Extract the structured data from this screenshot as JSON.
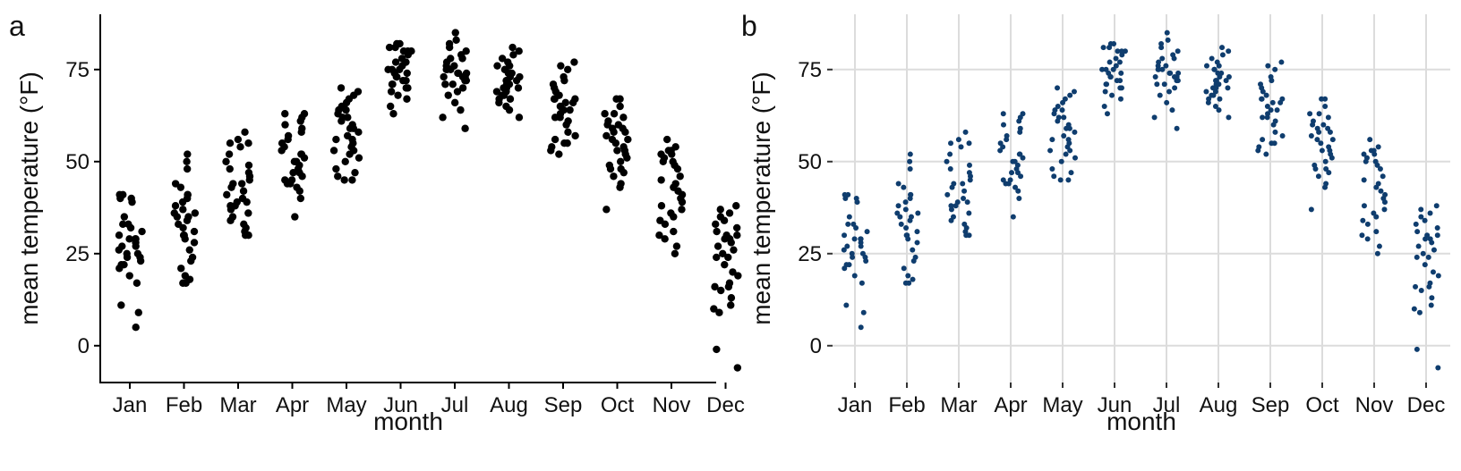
{
  "chart_data": [
    {
      "panel_label": "a",
      "type": "scatter",
      "style": "jittered strip chart, axis lines only, no grid",
      "grid": false,
      "point_color": "#000000",
      "xlabel": "month",
      "ylabel": "mean temperature (°F)",
      "categories": [
        "Jan",
        "Feb",
        "Mar",
        "Apr",
        "May",
        "Jun",
        "Jul",
        "Aug",
        "Sep",
        "Oct",
        "Nov",
        "Dec"
      ],
      "yticks": [
        0,
        25,
        50,
        75
      ],
      "ylim": [
        -10,
        90
      ],
      "values": [
        [
          5,
          9,
          11,
          17,
          19,
          21,
          22,
          23,
          24,
          25,
          25,
          26,
          27,
          28,
          29,
          29,
          30,
          31,
          32,
          33,
          33,
          35,
          39,
          40,
          40,
          41,
          41,
          29,
          24,
          27,
          22
        ],
        [
          17,
          17,
          18,
          19,
          21,
          23,
          24,
          26,
          28,
          29,
          30,
          31,
          32,
          33,
          34,
          35,
          35,
          36,
          37,
          38,
          39,
          40,
          41,
          41,
          43,
          44,
          48,
          50,
          52,
          30,
          36
        ],
        [
          30,
          30,
          31,
          32,
          33,
          34,
          35,
          36,
          37,
          38,
          38,
          39,
          40,
          41,
          42,
          43,
          44,
          45,
          46,
          47,
          48,
          49,
          50,
          52,
          54,
          55,
          55,
          56,
          58,
          39,
          44
        ],
        [
          35,
          40,
          42,
          43,
          44,
          45,
          46,
          47,
          48,
          49,
          50,
          51,
          52,
          53,
          54,
          55,
          56,
          57,
          58,
          59,
          60,
          61,
          62,
          63,
          63,
          47,
          52,
          45,
          50,
          44
        ],
        [
          45,
          45,
          46,
          47,
          48,
          50,
          51,
          52,
          53,
          54,
          55,
          56,
          57,
          58,
          59,
          60,
          61,
          62,
          63,
          64,
          65,
          66,
          67,
          68,
          69,
          70,
          56,
          59,
          62,
          64,
          53
        ],
        [
          63,
          65,
          67,
          68,
          69,
          70,
          71,
          72,
          73,
          74,
          75,
          75,
          76,
          77,
          78,
          79,
          80,
          80,
          81,
          81,
          82,
          82,
          73,
          70,
          75,
          77,
          72,
          71,
          80,
          74
        ],
        [
          59,
          62,
          64,
          66,
          68,
          69,
          70,
          71,
          72,
          72,
          73,
          73,
          74,
          74,
          75,
          75,
          76,
          77,
          78,
          78,
          79,
          80,
          81,
          82,
          83,
          85,
          71,
          76,
          74,
          73,
          75
        ],
        [
          62,
          64,
          65,
          66,
          67,
          68,
          68,
          69,
          70,
          70,
          71,
          71,
          72,
          72,
          73,
          73,
          74,
          75,
          76,
          76,
          77,
          78,
          79,
          80,
          81,
          70,
          74,
          69,
          72,
          67,
          75
        ],
        [
          52,
          53,
          54,
          55,
          56,
          57,
          58,
          60,
          61,
          62,
          63,
          64,
          65,
          66,
          66,
          67,
          67,
          68,
          69,
          70,
          71,
          72,
          73,
          75,
          76,
          77,
          55,
          62,
          64,
          67
        ],
        [
          37,
          43,
          44,
          46,
          47,
          48,
          49,
          50,
          51,
          52,
          53,
          54,
          55,
          56,
          57,
          58,
          58,
          59,
          60,
          61,
          62,
          63,
          63,
          65,
          67,
          67,
          48,
          53,
          56,
          59,
          60
        ],
        [
          25,
          27,
          29,
          30,
          31,
          33,
          34,
          35,
          36,
          37,
          38,
          39,
          40,
          41,
          42,
          43,
          44,
          45,
          46,
          48,
          49,
          50,
          50,
          51,
          52,
          52,
          53,
          53,
          54,
          56
        ],
        [
          -6,
          -1,
          9,
          10,
          11,
          13,
          15,
          16,
          17,
          19,
          20,
          22,
          24,
          25,
          26,
          27,
          28,
          29,
          30,
          31,
          32,
          33,
          34,
          35,
          36,
          37,
          38,
          29,
          24,
          30,
          16
        ]
      ]
    },
    {
      "panel_label": "b",
      "type": "scatter",
      "style": "jittered strip chart, light grey major grid, no axis lines",
      "grid": true,
      "point_color": "#0f3d6e",
      "xlabel": "month",
      "ylabel": "mean temperature (°F)",
      "categories": [
        "Jan",
        "Feb",
        "Mar",
        "Apr",
        "May",
        "Jun",
        "Jul",
        "Aug",
        "Sep",
        "Oct",
        "Nov",
        "Dec"
      ],
      "yticks": [
        0,
        25,
        50,
        75
      ],
      "ylim": [
        -10,
        90
      ],
      "values": [
        [
          5,
          9,
          11,
          17,
          19,
          21,
          22,
          23,
          24,
          25,
          25,
          26,
          27,
          28,
          29,
          29,
          30,
          31,
          32,
          33,
          33,
          35,
          39,
          40,
          40,
          41,
          41,
          29,
          24,
          27,
          22
        ],
        [
          17,
          17,
          18,
          19,
          21,
          23,
          24,
          26,
          28,
          29,
          30,
          31,
          32,
          33,
          34,
          35,
          35,
          36,
          37,
          38,
          39,
          40,
          41,
          41,
          43,
          44,
          48,
          50,
          52,
          30,
          36
        ],
        [
          30,
          30,
          31,
          32,
          33,
          34,
          35,
          36,
          37,
          38,
          38,
          39,
          40,
          41,
          42,
          43,
          44,
          45,
          46,
          47,
          48,
          49,
          50,
          52,
          54,
          55,
          55,
          56,
          58,
          39,
          44
        ],
        [
          35,
          40,
          42,
          43,
          44,
          45,
          46,
          47,
          48,
          49,
          50,
          51,
          52,
          53,
          54,
          55,
          56,
          57,
          58,
          59,
          60,
          61,
          62,
          63,
          63,
          47,
          52,
          45,
          50,
          44
        ],
        [
          45,
          45,
          46,
          47,
          48,
          50,
          51,
          52,
          53,
          54,
          55,
          56,
          57,
          58,
          59,
          60,
          61,
          62,
          63,
          64,
          65,
          66,
          67,
          68,
          69,
          70,
          56,
          59,
          62,
          64,
          53
        ],
        [
          63,
          65,
          67,
          68,
          69,
          70,
          71,
          72,
          73,
          74,
          75,
          75,
          76,
          77,
          78,
          79,
          80,
          80,
          81,
          81,
          82,
          82,
          73,
          70,
          75,
          77,
          72,
          71,
          80,
          74
        ],
        [
          59,
          62,
          64,
          66,
          68,
          69,
          70,
          71,
          72,
          72,
          73,
          73,
          74,
          74,
          75,
          75,
          76,
          77,
          78,
          78,
          79,
          80,
          81,
          82,
          83,
          85,
          71,
          76,
          74,
          73,
          75
        ],
        [
          62,
          64,
          65,
          66,
          67,
          68,
          68,
          69,
          70,
          70,
          71,
          71,
          72,
          72,
          73,
          73,
          74,
          75,
          76,
          76,
          77,
          78,
          79,
          80,
          81,
          70,
          74,
          69,
          72,
          67,
          75
        ],
        [
          52,
          53,
          54,
          55,
          56,
          57,
          58,
          60,
          61,
          62,
          63,
          64,
          65,
          66,
          66,
          67,
          67,
          68,
          69,
          70,
          71,
          72,
          73,
          75,
          76,
          77,
          55,
          62,
          64,
          67
        ],
        [
          37,
          43,
          44,
          46,
          47,
          48,
          49,
          50,
          51,
          52,
          53,
          54,
          55,
          56,
          57,
          58,
          58,
          59,
          60,
          61,
          62,
          63,
          63,
          65,
          67,
          67,
          48,
          53,
          56,
          59,
          60
        ],
        [
          25,
          27,
          29,
          30,
          31,
          33,
          34,
          35,
          36,
          37,
          38,
          39,
          40,
          41,
          42,
          43,
          44,
          45,
          46,
          48,
          49,
          50,
          50,
          51,
          52,
          52,
          53,
          53,
          54,
          56
        ],
        [
          -6,
          -1,
          9,
          10,
          11,
          13,
          15,
          16,
          17,
          19,
          20,
          22,
          24,
          25,
          26,
          27,
          28,
          29,
          30,
          31,
          32,
          33,
          34,
          35,
          36,
          37,
          38,
          29,
          24,
          30,
          16
        ]
      ]
    }
  ]
}
